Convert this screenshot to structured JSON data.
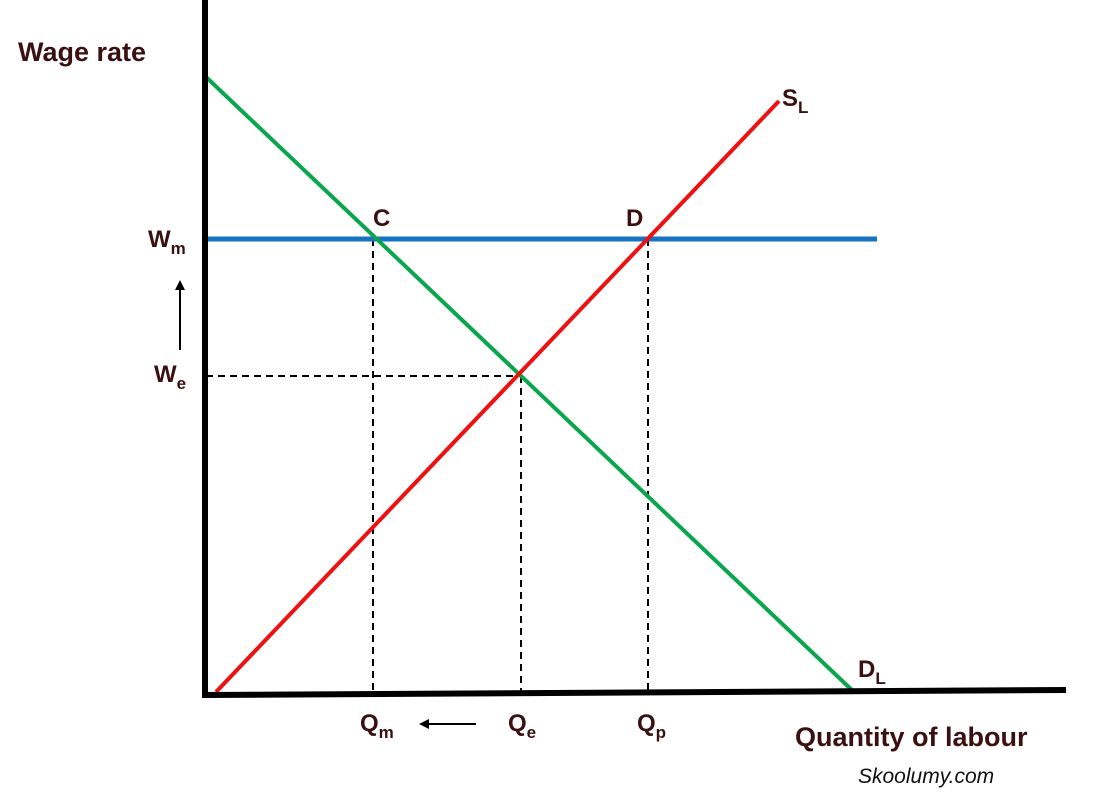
{
  "colors": {
    "axes": "#000000",
    "supply": "#ee1111",
    "demand": "#0aa64e",
    "minimum_wage": "#1673c2",
    "guides": "#000000",
    "text": "#3a1010"
  },
  "axes": {
    "y_title": "Wage rate",
    "x_title": "Quantity of labour"
  },
  "curves": {
    "supply": {
      "letter": "S",
      "subscript": "L"
    },
    "demand": {
      "letter": "D",
      "subscript": "L"
    }
  },
  "points": {
    "c": "C",
    "d": "D"
  },
  "wages": {
    "minimum": {
      "letter": "W",
      "subscript": "m"
    },
    "equilibrium": {
      "letter": "W",
      "subscript": "e"
    }
  },
  "quantities": {
    "minimum": {
      "letter": "Q",
      "subscript": "m"
    },
    "equilibrium": {
      "letter": "Q",
      "subscript": "e"
    },
    "supplied": {
      "letter": "Q",
      "subscript": "p"
    }
  },
  "credit": "Skoolumy.com"
}
